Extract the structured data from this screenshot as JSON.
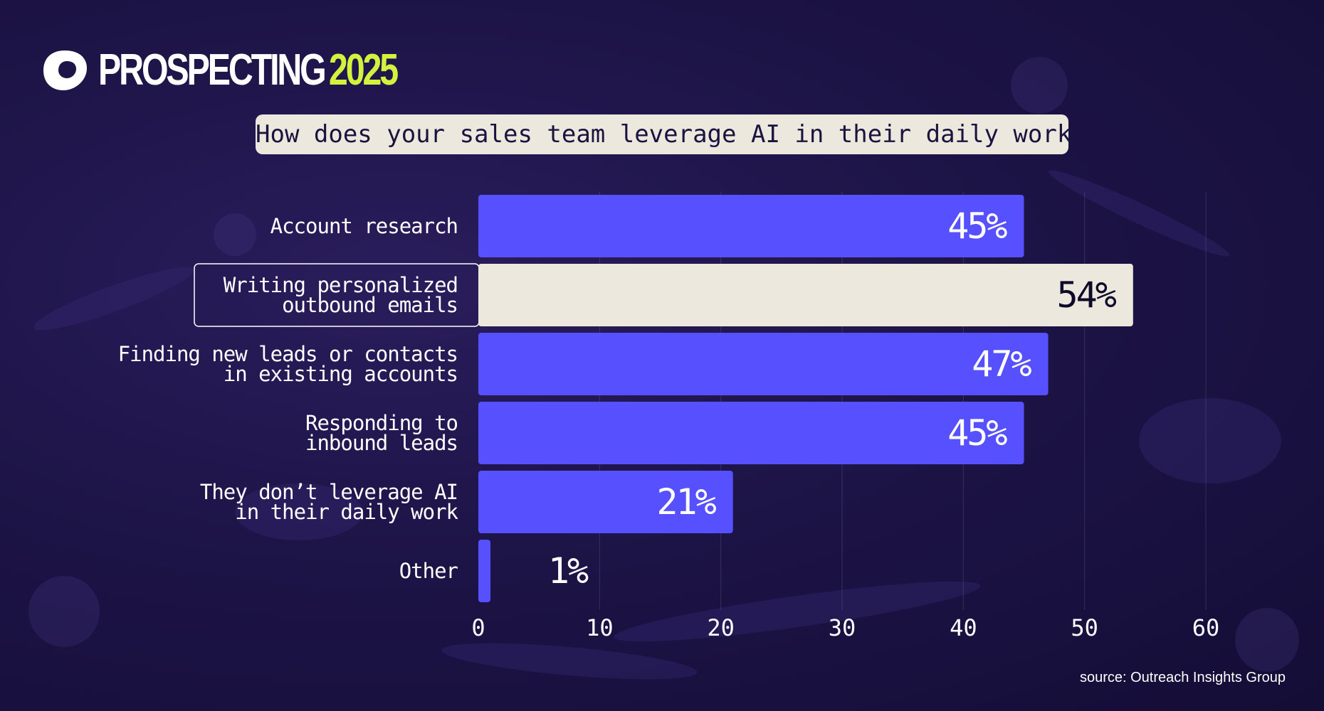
{
  "brand": {
    "word1": "PROSPECTING",
    "word2": "2025",
    "accent": "#d3f23e",
    "logo_icon": "outreach-logo-icon"
  },
  "question": "How does your sales team leverage AI in their daily work?",
  "source": "source: Outreach Insights Group",
  "colors": {
    "bar": "#5650ff",
    "highlight_bar": "#ece8dd",
    "highlight_text": "#0f0a2a",
    "label": "#ffffff"
  },
  "chart_data": {
    "type": "bar",
    "orientation": "horizontal",
    "title": "How does your sales team leverage AI in their daily work?",
    "categories": [
      [
        "Account research"
      ],
      [
        "Writing personalized",
        "outbound emails"
      ],
      [
        "Finding new leads or contacts",
        "in existing accounts"
      ],
      [
        "Responding to",
        "inbound leads"
      ],
      [
        "They don’t leverage AI",
        "in their daily work"
      ],
      [
        "Other"
      ]
    ],
    "values": [
      45,
      54,
      47,
      45,
      21,
      1
    ],
    "value_labels": [
      "45%",
      "54%",
      "47%",
      "45%",
      "21%",
      "1%"
    ],
    "highlighted_index": 1,
    "xlim": [
      0,
      60
    ],
    "xticks": [
      "0",
      "10",
      "20",
      "30",
      "40",
      "50",
      "60"
    ],
    "grid": true,
    "legend": "none"
  }
}
